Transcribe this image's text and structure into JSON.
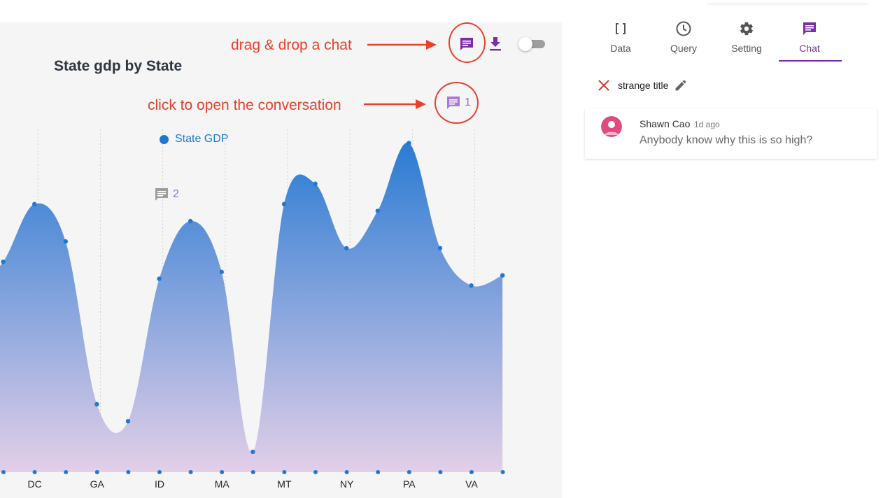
{
  "chart_panel": {
    "title": "State gdp by State",
    "legend_label": "State GDP",
    "comment_counts": {
      "first": "1",
      "second": "2"
    }
  },
  "annotations": {
    "drag_drop": "drag & drop a chat",
    "click_open": "click to open the conversation",
    "color": "#e8412c"
  },
  "chart_data": {
    "type": "area",
    "title": "State gdp by State",
    "series": [
      {
        "name": "State GDP"
      }
    ],
    "x_ticks": [
      "DC",
      "GA",
      "ID",
      "MA",
      "MT",
      "NY",
      "PA",
      "VA"
    ],
    "y_relative": [
      0.53,
      0.62,
      0.79,
      0.68,
      0.2,
      0.15,
      0.57,
      0.74,
      0.59,
      0.06,
      0.79,
      0.85,
      0.66,
      0.77,
      0.97,
      0.66,
      0.55,
      0.58
    ],
    "gradient_top": "#2b7bd3",
    "gradient_bottom": "#e3cfe8",
    "point_color": "#1f78d1",
    "ylim": [
      0,
      1
    ],
    "grid": "vertical dotted"
  },
  "side_panel": {
    "tabs": [
      {
        "label": "Data",
        "icon": "brackets-icon"
      },
      {
        "label": "Query",
        "icon": "clock-icon"
      },
      {
        "label": "Setting",
        "icon": "gear-icon"
      },
      {
        "label": "Chat",
        "icon": "chat-icon",
        "active": true
      }
    ],
    "accent_color": "#7b2fa6",
    "conversation_title": "strange title",
    "messages": [
      {
        "author": "Shawn Cao",
        "time": "1d ago",
        "text": "Anybody know why this is so high?"
      }
    ]
  }
}
